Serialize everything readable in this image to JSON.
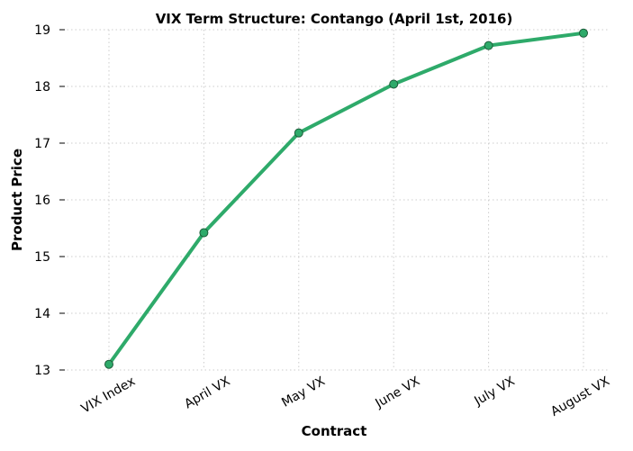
{
  "chart_data": {
    "type": "line",
    "title": "VIX Term Structure: Contango (April 1st, 2016)",
    "xlabel": "Contract",
    "ylabel": "Product Price",
    "categories": [
      "VIX Index",
      "April VX",
      "May VX",
      "June VX",
      "July VX",
      "August VX"
    ],
    "series": [
      {
        "values": [
          13.1,
          15.42,
          17.18,
          18.04,
          18.72,
          18.94
        ]
      }
    ],
    "ylim": [
      13,
      19
    ],
    "yticks": [
      13,
      14,
      15,
      16,
      17,
      18,
      19
    ],
    "grid": true,
    "line_color": "#2eaa6a",
    "marker_edge_color": "#1e5c3a"
  }
}
